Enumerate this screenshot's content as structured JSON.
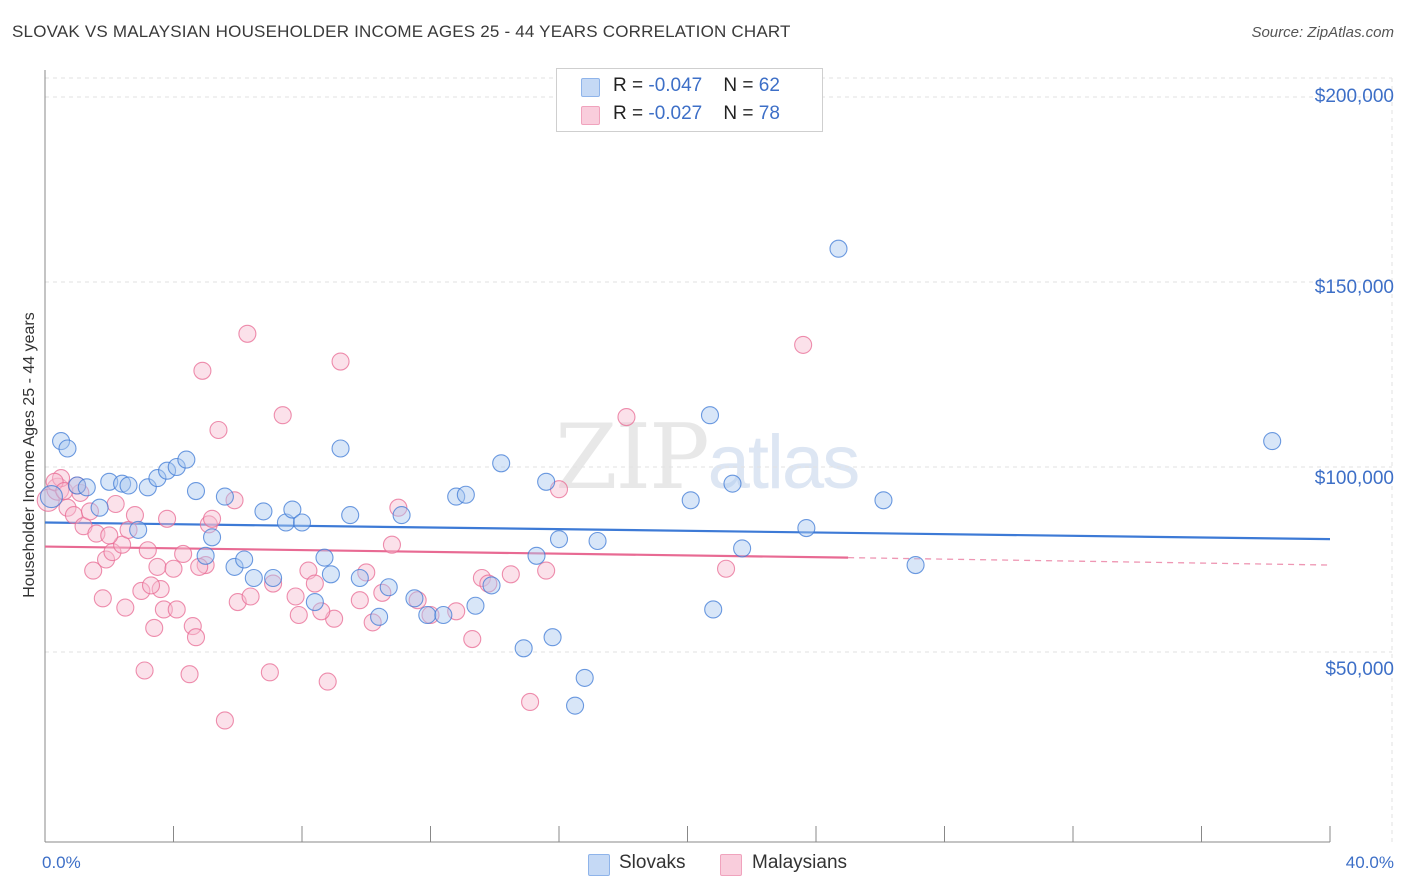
{
  "title": "SLOVAK VS MALAYSIAN HOUSEHOLDER INCOME AGES 25 - 44 YEARS CORRELATION CHART",
  "source": "Source: ZipAtlas.com",
  "watermark": {
    "zip": "ZIP",
    "atlas": "atlas"
  },
  "legend_top": [
    {
      "r_label": "R = ",
      "r_value": "-0.047",
      "n_label": "N = ",
      "n_value": "62",
      "color": "#8fb4ea",
      "fill": "#c5d9f5"
    },
    {
      "r_label": "R = ",
      "r_value": "-0.027",
      "n_label": "N = ",
      "n_value": "78",
      "color": "#f0a3bd",
      "fill": "#f9cddc"
    }
  ],
  "legend_bottom": [
    "Slovaks",
    "Malaysians"
  ],
  "chart_data": {
    "type": "scatter",
    "title": "SLOVAK VS MALAYSIAN HOUSEHOLDER INCOME AGES 25 - 44 YEARS CORRELATION CHART",
    "xlabel": "",
    "ylabel": "Householder Income Ages 25 - 44 years",
    "xlim": [
      0,
      40
    ],
    "ylim": [
      0,
      210000
    ],
    "x_tick_labels": [
      "0.0%",
      "40.0%"
    ],
    "y_ticks": [
      50000,
      100000,
      150000,
      200000
    ],
    "y_tick_labels": [
      "$50,000",
      "$100,000",
      "$150,000",
      "$200,000"
    ],
    "grid": true,
    "series": [
      {
        "name": "Slovaks",
        "color": "#3d7ad6",
        "fill": "#a9c7f0",
        "trend": {
          "x0": 0,
          "y0": 85000,
          "x1": 40,
          "y1": 80500
        },
        "points": [
          [
            0.2,
            92000
          ],
          [
            0.5,
            107000
          ],
          [
            0.7,
            105000
          ],
          [
            1.0,
            95000
          ],
          [
            1.3,
            94500
          ],
          [
            1.7,
            89000
          ],
          [
            2.0,
            96000
          ],
          [
            2.4,
            95500
          ],
          [
            2.6,
            95000
          ],
          [
            2.9,
            83000
          ],
          [
            3.2,
            94500
          ],
          [
            3.5,
            97000
          ],
          [
            3.8,
            99000
          ],
          [
            4.1,
            100000
          ],
          [
            4.4,
            102000
          ],
          [
            4.7,
            93500
          ],
          [
            5.0,
            76000
          ],
          [
            5.2,
            81000
          ],
          [
            5.6,
            92000
          ],
          [
            5.9,
            73000
          ],
          [
            6.2,
            75000
          ],
          [
            6.5,
            70000
          ],
          [
            6.8,
            88000
          ],
          [
            7.1,
            70000
          ],
          [
            7.5,
            85000
          ],
          [
            7.7,
            88500
          ],
          [
            8.0,
            85000
          ],
          [
            8.4,
            63500
          ],
          [
            8.7,
            75500
          ],
          [
            8.9,
            71000
          ],
          [
            9.2,
            105000
          ],
          [
            9.5,
            87000
          ],
          [
            9.8,
            70000
          ],
          [
            10.4,
            59500
          ],
          [
            10.7,
            67500
          ],
          [
            11.1,
            87000
          ],
          [
            11.5,
            64500
          ],
          [
            11.9,
            60000
          ],
          [
            12.4,
            60000
          ],
          [
            12.8,
            92000
          ],
          [
            13.1,
            92500
          ],
          [
            13.4,
            62500
          ],
          [
            13.9,
            68000
          ],
          [
            14.2,
            101000
          ],
          [
            14.9,
            51000
          ],
          [
            15.3,
            76000
          ],
          [
            15.6,
            96000
          ],
          [
            15.8,
            54000
          ],
          [
            16.0,
            80500
          ],
          [
            16.5,
            35500
          ],
          [
            16.8,
            43000
          ],
          [
            17.2,
            80000
          ],
          [
            20.1,
            91000
          ],
          [
            20.8,
            61500
          ],
          [
            20.7,
            114000
          ],
          [
            21.4,
            95500
          ],
          [
            21.7,
            78000
          ],
          [
            23.7,
            83500
          ],
          [
            24.7,
            159000
          ],
          [
            26.1,
            91000
          ],
          [
            27.1,
            73500
          ],
          [
            38.2,
            107000
          ]
        ]
      },
      {
        "name": "Malaysians",
        "color": "#e86a93",
        "fill": "#f7bcd0",
        "trend": {
          "x0": 0,
          "y0": 78500,
          "x1": 25,
          "y1": 75500,
          "dash_x1": 40,
          "dash_y1": 73500
        },
        "points": [
          [
            0.1,
            91000
          ],
          [
            0.4,
            94000
          ],
          [
            0.5,
            97000
          ],
          [
            0.7,
            89000
          ],
          [
            0.9,
            87000
          ],
          [
            1.1,
            93000
          ],
          [
            1.2,
            84000
          ],
          [
            1.4,
            88000
          ],
          [
            1.5,
            72000
          ],
          [
            1.6,
            82000
          ],
          [
            1.8,
            64500
          ],
          [
            1.9,
            75000
          ],
          [
            2.1,
            77000
          ],
          [
            2.2,
            90000
          ],
          [
            2.4,
            79000
          ],
          [
            2.5,
            62000
          ],
          [
            2.6,
            83000
          ],
          [
            2.8,
            87000
          ],
          [
            3.0,
            66500
          ],
          [
            3.1,
            45000
          ],
          [
            3.2,
            77500
          ],
          [
            3.4,
            56500
          ],
          [
            3.5,
            73000
          ],
          [
            3.6,
            67000
          ],
          [
            3.7,
            61500
          ],
          [
            3.8,
            86000
          ],
          [
            4.0,
            72500
          ],
          [
            4.1,
            61500
          ],
          [
            4.3,
            76500
          ],
          [
            4.5,
            44000
          ],
          [
            4.6,
            57000
          ],
          [
            4.7,
            54000
          ],
          [
            4.9,
            126000
          ],
          [
            5.0,
            73500
          ],
          [
            5.1,
            84500
          ],
          [
            5.2,
            86000
          ],
          [
            5.4,
            110000
          ],
          [
            5.6,
            31500
          ],
          [
            5.9,
            91000
          ],
          [
            6.0,
            63500
          ],
          [
            6.3,
            136000
          ],
          [
            6.4,
            65000
          ],
          [
            7.0,
            44500
          ],
          [
            7.1,
            68500
          ],
          [
            7.4,
            114000
          ],
          [
            7.8,
            65000
          ],
          [
            7.9,
            60000
          ],
          [
            8.2,
            72000
          ],
          [
            8.4,
            68500
          ],
          [
            8.8,
            42000
          ],
          [
            9.0,
            59000
          ],
          [
            9.2,
            128500
          ],
          [
            9.8,
            64000
          ],
          [
            10.0,
            71500
          ],
          [
            10.2,
            58000
          ],
          [
            10.5,
            66000
          ],
          [
            10.8,
            79000
          ],
          [
            11.0,
            89000
          ],
          [
            11.6,
            64000
          ],
          [
            12.0,
            60000
          ],
          [
            12.8,
            61000
          ],
          [
            13.3,
            53500
          ],
          [
            13.6,
            70000
          ],
          [
            13.8,
            68500
          ],
          [
            14.5,
            71000
          ],
          [
            15.1,
            36500
          ],
          [
            15.6,
            72000
          ],
          [
            16.0,
            94000
          ],
          [
            18.1,
            113500
          ],
          [
            21.2,
            72500
          ],
          [
            23.6,
            133000
          ],
          [
            0.3,
            96000
          ],
          [
            0.6,
            93500
          ],
          [
            1.0,
            95000
          ],
          [
            2.0,
            81500
          ],
          [
            3.3,
            68000
          ],
          [
            4.8,
            73000
          ],
          [
            8.6,
            61000
          ]
        ]
      }
    ]
  }
}
